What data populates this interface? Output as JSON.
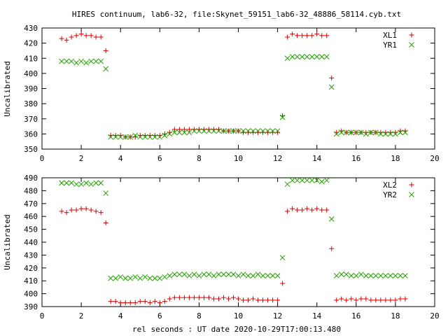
{
  "title": "HIRES continuum, lab6-32, file:Skynet_59151_lab6-32_48886_58114.cyb.txt",
  "xlabel": "rel seconds : UT date 2020-10-29T17:00:13.480",
  "colors": {
    "red": "#d40000",
    "green": "#22a000"
  },
  "chart_data": [
    {
      "type": "scatter",
      "ylabel": "Uncalibrated",
      "xlim": [
        0,
        20
      ],
      "ylim": [
        350,
        430
      ],
      "xticks": [
        "0",
        "2",
        "4",
        "6",
        "8",
        "10",
        "12",
        "14",
        "16",
        "18",
        "20"
      ],
      "yticks": [
        "350",
        "360",
        "370",
        "380",
        "390",
        "400",
        "410",
        "420",
        "430"
      ],
      "legend_position": "top-right",
      "series": [
        {
          "name": "XL1",
          "marker": "plus",
          "color": "#d40000",
          "x": [
            1.0,
            1.25,
            1.5,
            1.75,
            2.0,
            2.25,
            2.5,
            2.75,
            3.0,
            3.25,
            3.5,
            3.75,
            4.0,
            4.25,
            4.5,
            4.75,
            5.0,
            5.25,
            5.5,
            5.75,
            6.0,
            6.25,
            6.5,
            6.75,
            7.0,
            7.25,
            7.5,
            7.75,
            8.0,
            8.25,
            8.5,
            8.75,
            9.0,
            9.25,
            9.5,
            9.75,
            10.0,
            10.25,
            10.5,
            10.75,
            11.0,
            11.25,
            11.5,
            11.75,
            12.0,
            12.25,
            12.5,
            12.75,
            13.0,
            13.25,
            13.5,
            13.75,
            14.0,
            14.25,
            14.5,
            14.75,
            15.0,
            15.25,
            15.5,
            15.75,
            16.0,
            16.25,
            16.5,
            16.75,
            17.0,
            17.25,
            17.5,
            17.75,
            18.0,
            18.25,
            18.5
          ],
          "y": [
            423,
            422,
            424,
            425,
            426,
            425,
            425,
            424,
            424,
            415,
            359,
            359,
            359,
            358,
            358,
            358,
            359,
            359,
            359,
            359,
            359,
            360,
            361,
            363,
            363,
            363,
            363,
            363,
            363,
            363,
            363,
            363,
            363,
            362,
            362,
            362,
            362,
            361,
            361,
            361,
            361,
            361,
            361,
            361,
            361,
            372,
            424,
            426,
            425,
            425,
            425,
            425,
            426,
            425,
            425,
            397,
            361,
            362,
            361,
            361,
            361,
            361,
            361,
            361,
            361,
            361,
            361,
            361,
            361,
            362,
            362
          ]
        },
        {
          "name": "YR1",
          "marker": "cross",
          "color": "#22a000",
          "x": [
            1.0,
            1.25,
            1.5,
            1.75,
            2.0,
            2.25,
            2.5,
            2.75,
            3.0,
            3.25,
            3.5,
            3.75,
            4.0,
            4.25,
            4.5,
            4.75,
            5.0,
            5.25,
            5.5,
            5.75,
            6.0,
            6.25,
            6.5,
            6.75,
            7.0,
            7.25,
            7.5,
            7.75,
            8.0,
            8.25,
            8.5,
            8.75,
            9.0,
            9.25,
            9.5,
            9.75,
            10.0,
            10.25,
            10.5,
            10.75,
            11.0,
            11.25,
            11.5,
            11.75,
            12.0,
            12.25,
            12.5,
            12.75,
            13.0,
            13.25,
            13.5,
            13.75,
            14.0,
            14.25,
            14.5,
            14.75,
            15.0,
            15.25,
            15.5,
            15.75,
            16.0,
            16.25,
            16.5,
            16.75,
            17.0,
            17.25,
            17.5,
            17.75,
            18.0,
            18.25,
            18.5
          ],
          "y": [
            408,
            408,
            408,
            407,
            408,
            407,
            408,
            408,
            408,
            403,
            358,
            358,
            358,
            358,
            358,
            359,
            358,
            358,
            358,
            358,
            358,
            359,
            360,
            361,
            361,
            361,
            361,
            362,
            362,
            362,
            362,
            362,
            362,
            362,
            362,
            362,
            362,
            362,
            362,
            362,
            362,
            362,
            362,
            362,
            362,
            371,
            410,
            411,
            411,
            411,
            411,
            411,
            411,
            411,
            411,
            391,
            360,
            361,
            361,
            361,
            361,
            361,
            360,
            361,
            361,
            360,
            360,
            360,
            360,
            361,
            361
          ]
        }
      ]
    },
    {
      "type": "scatter",
      "ylabel": "Uncalibrated",
      "xlim": [
        0,
        20
      ],
      "ylim": [
        390,
        490
      ],
      "xticks": [
        "0",
        "2",
        "4",
        "6",
        "8",
        "10",
        "12",
        "14",
        "16",
        "18",
        "20"
      ],
      "yticks": [
        "390",
        "400",
        "410",
        "420",
        "430",
        "440",
        "450",
        "460",
        "470",
        "480",
        "490"
      ],
      "legend_position": "top-right",
      "series": [
        {
          "name": "XL2",
          "marker": "plus",
          "color": "#d40000",
          "x": [
            1.0,
            1.25,
            1.5,
            1.75,
            2.0,
            2.25,
            2.5,
            2.75,
            3.0,
            3.25,
            3.5,
            3.75,
            4.0,
            4.25,
            4.5,
            4.75,
            5.0,
            5.25,
            5.5,
            5.75,
            6.0,
            6.25,
            6.5,
            6.75,
            7.0,
            7.25,
            7.5,
            7.75,
            8.0,
            8.25,
            8.5,
            8.75,
            9.0,
            9.25,
            9.5,
            9.75,
            10.0,
            10.25,
            10.5,
            10.75,
            11.0,
            11.25,
            11.5,
            11.75,
            12.0,
            12.25,
            12.5,
            12.75,
            13.0,
            13.25,
            13.5,
            13.75,
            14.0,
            14.25,
            14.5,
            14.75,
            15.0,
            15.25,
            15.5,
            15.75,
            16.0,
            16.25,
            16.5,
            16.75,
            17.0,
            17.25,
            17.5,
            17.75,
            18.0,
            18.25,
            18.5
          ],
          "y": [
            464,
            463,
            465,
            465,
            466,
            466,
            465,
            464,
            463,
            455,
            394,
            394,
            393,
            393,
            393,
            393,
            394,
            394,
            393,
            394,
            393,
            394,
            396,
            397,
            397,
            397,
            397,
            397,
            397,
            397,
            397,
            396,
            396,
            397,
            396,
            397,
            396,
            395,
            395,
            396,
            395,
            395,
            395,
            395,
            395,
            408,
            464,
            466,
            465,
            465,
            466,
            465,
            466,
            465,
            465,
            435,
            395,
            396,
            395,
            396,
            395,
            396,
            396,
            395,
            395,
            395,
            395,
            395,
            395,
            396,
            396
          ]
        },
        {
          "name": "YR2",
          "marker": "cross",
          "color": "#22a000",
          "x": [
            1.0,
            1.25,
            1.5,
            1.75,
            2.0,
            2.25,
            2.5,
            2.75,
            3.0,
            3.25,
            3.5,
            3.75,
            4.0,
            4.25,
            4.5,
            4.75,
            5.0,
            5.25,
            5.5,
            5.75,
            6.0,
            6.25,
            6.5,
            6.75,
            7.0,
            7.25,
            7.5,
            7.75,
            8.0,
            8.25,
            8.5,
            8.75,
            9.0,
            9.25,
            9.5,
            9.75,
            10.0,
            10.25,
            10.5,
            10.75,
            11.0,
            11.25,
            11.5,
            11.75,
            12.0,
            12.25,
            12.5,
            12.75,
            13.0,
            13.25,
            13.5,
            13.75,
            14.0,
            14.25,
            14.5,
            14.75,
            15.0,
            15.25,
            15.5,
            15.75,
            16.0,
            16.25,
            16.5,
            16.75,
            17.0,
            17.25,
            17.5,
            17.75,
            18.0,
            18.25,
            18.5
          ],
          "y": [
            486,
            486,
            486,
            485,
            485,
            486,
            485,
            486,
            486,
            478,
            412,
            412,
            413,
            412,
            412,
            413,
            412,
            413,
            412,
            412,
            412,
            413,
            414,
            415,
            415,
            415,
            414,
            415,
            414,
            415,
            415,
            414,
            415,
            415,
            415,
            415,
            414,
            415,
            414,
            414,
            415,
            414,
            414,
            414,
            414,
            428,
            485,
            488,
            488,
            488,
            488,
            488,
            488,
            487,
            488,
            458,
            414,
            415,
            415,
            414,
            414,
            415,
            414,
            414,
            414,
            414,
            414,
            414,
            414,
            414,
            414
          ]
        }
      ]
    }
  ]
}
